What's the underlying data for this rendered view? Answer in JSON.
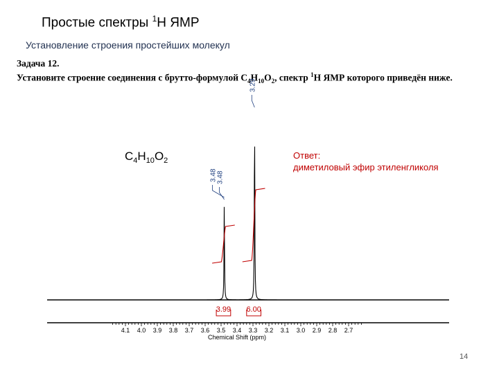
{
  "header": {
    "title_main": "Простые спектры ",
    "title_sup": "1",
    "title_rest": "H ЯМР",
    "subtitle": "Установление строения простейших молекул"
  },
  "task": {
    "line1": "Задача 12.",
    "line2_a": "Установите строение соединения с брутто-формулой C",
    "line2_sub1": "4",
    "line2_b": "H",
    "line2_sub2": "10",
    "line2_c": "O",
    "line2_sub3": "2",
    "line2_d": ", спектр ",
    "line2_sup": "1",
    "line2_e": "H ЯМР которого приведён ниже."
  },
  "answer": {
    "label": "Ответ:",
    "text": "диметиловый эфир этиленгликоля"
  },
  "page_number": "14",
  "chart_data": {
    "type": "line",
    "title": "",
    "xlabel": "Chemical Shift (ppm)",
    "ylabel": "",
    "xlim": [
      4.2,
      2.6
    ],
    "x_reversed": true,
    "x_ticks": [
      "4.1",
      "4.0",
      "3.9",
      "3.8",
      "3.7",
      "3.6",
      "3.5",
      "3.4",
      "3.3",
      "3.2",
      "3.1",
      "3.0",
      "2.9",
      "2.8",
      "2.7"
    ],
    "formula": {
      "C": "C",
      "c_count": "4",
      "H": "H",
      "h_count": "10",
      "O": "O",
      "o_count": "2"
    },
    "peaks": [
      {
        "shift": 3.48,
        "height": 0.52
      },
      {
        "shift": 3.29,
        "height": 1.0
      }
    ],
    "peak_labels": [
      {
        "text": "3.48",
        "shift": 3.48
      },
      {
        "text": "3.48",
        "shift": 3.48
      },
      {
        "text": "3.29",
        "shift": 3.29
      }
    ],
    "integrals": [
      {
        "value": "3.99",
        "from": 3.53,
        "to": 3.44
      },
      {
        "value": "6.00",
        "from": 3.34,
        "to": 3.25
      }
    ],
    "colors": {
      "spectrum": "#000000",
      "integral": "#c00000",
      "peak_label": "#1f3f7f"
    }
  }
}
